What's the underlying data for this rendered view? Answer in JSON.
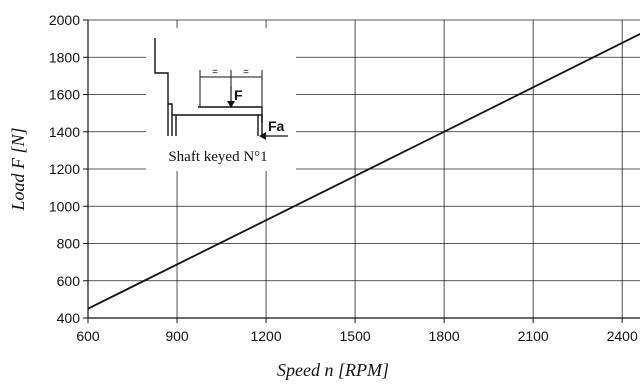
{
  "chart_data": {
    "type": "line",
    "title": "",
    "xlabel": "Speed n [RPM]",
    "ylabel": "Load F [N]",
    "xlim": [
      600,
      2460
    ],
    "ylim": [
      400,
      2000
    ],
    "xticks": [
      600,
      900,
      1200,
      1500,
      1800,
      2100,
      2400
    ],
    "yticks": [
      400,
      600,
      800,
      1000,
      1200,
      1400,
      1600,
      1800,
      2000
    ],
    "grid": true,
    "series": [
      {
        "x": [
          600,
          1800,
          2460
        ],
        "y": [
          450,
          1400,
          1925
        ]
      }
    ],
    "inset": {
      "caption": "Shaft keyed N°1",
      "force_label": "F",
      "axial_force_label": "Fa",
      "dimension_marks": [
        "=",
        "="
      ]
    }
  }
}
